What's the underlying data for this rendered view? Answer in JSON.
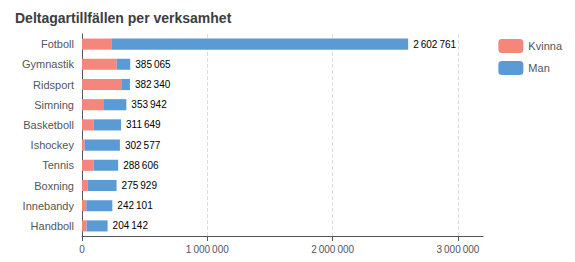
{
  "chart_data": {
    "type": "bar",
    "orientation": "horizontal",
    "stacked": true,
    "title": "Deltagartillfällen per verksamhet",
    "categories": [
      "Fotboll",
      "Gymnastik",
      "Ridsport",
      "Simning",
      "Basketboll",
      "Ishockey",
      "Tennis",
      "Boxning",
      "Innebandy",
      "Handboll"
    ],
    "series": [
      {
        "name": "Kvinna",
        "color": "#F4867C",
        "values": [
          234248.49,
          277246.8,
          313518.8,
          169892.16,
          93494.7,
          21180.39,
          92353.92,
          46907.93,
          33894.14,
          36745.56
        ]
      },
      {
        "name": "Man",
        "color": "#5B9BD5",
        "values": [
          2368512.51,
          107818.2,
          68821.2,
          184049.84,
          218154.3,
          281396.61,
          196252.08,
          229021.07,
          208206.86,
          167396.44
        ]
      }
    ],
    "totals": [
      2602761,
      385065,
      382340,
      353942,
      311649,
      302577,
      288606,
      275929,
      242101,
      204142
    ],
    "total_labels": [
      "2 602 761",
      "385 065",
      "382 340",
      "353 942",
      "311 649",
      "302 577",
      "288 606",
      "275 929",
      "242 101",
      "204 142"
    ],
    "xlim": [
      0,
      3200000
    ],
    "xticks": [
      0,
      {
        "value": 1000000,
        "label": "1 000 000"
      },
      {
        "value": 2000000,
        "label": "2 000 000"
      },
      {
        "value": 3000000,
        "label": "3 000 000"
      }
    ],
    "grid": true,
    "legend": "upper right"
  }
}
